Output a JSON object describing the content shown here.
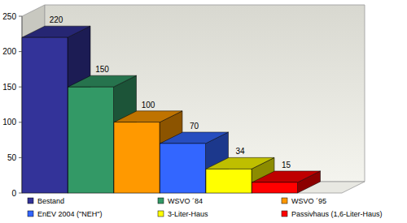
{
  "chart_data": {
    "type": "bar",
    "categories": [
      "Bestand",
      "WSVO ´84",
      "WSVO ´95",
      "EnEV 2004 (\"NEH\")",
      "3-Liter-Haus",
      "Passivhaus (1,6-Liter-Haus)"
    ],
    "values": [
      220,
      150,
      100,
      70,
      34,
      15
    ],
    "colors": [
      "#333399",
      "#339966",
      "#ff9900",
      "#3366ff",
      "#ffff00",
      "#ff0000"
    ],
    "ylim": [
      0,
      250
    ],
    "yticks": [
      0,
      50,
      100,
      150,
      200,
      250
    ],
    "grid": false,
    "data_labels": true,
    "legend": "bottom"
  }
}
